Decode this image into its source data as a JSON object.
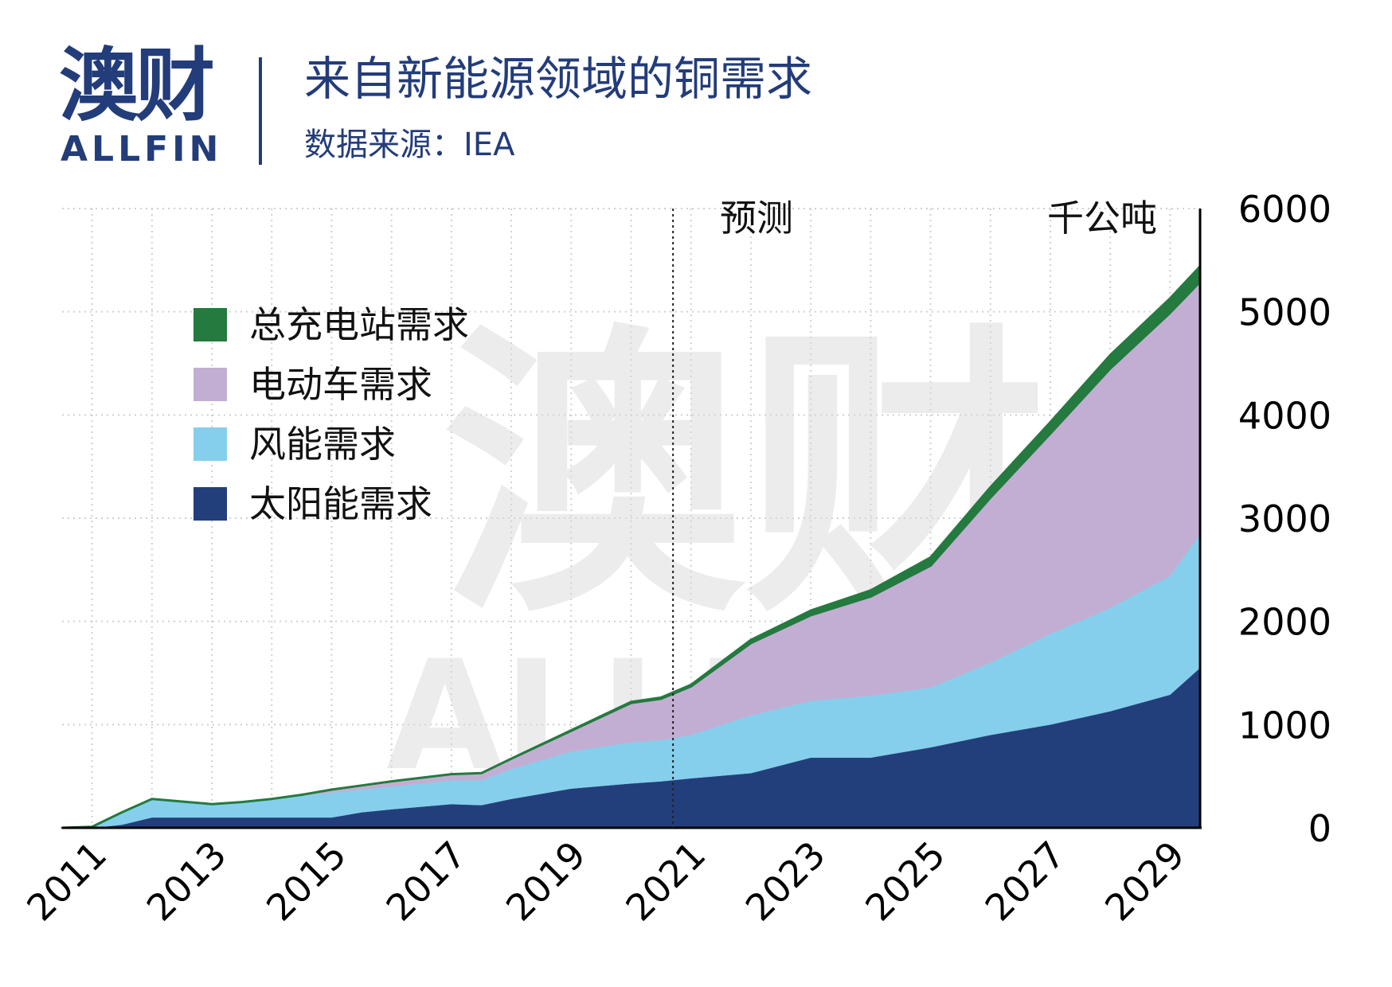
{
  "header": {
    "logo_cn": "澳财",
    "logo_en": "ALLFIN",
    "title": "来自新能源领域的铜需求",
    "source": "数据来源：IEA"
  },
  "watermark": {
    "cn": "澳财",
    "en": "ALLFIN"
  },
  "chart_data": {
    "type": "area",
    "stacked": true,
    "unit_label": "千公吨",
    "forecast_label": "预测",
    "forecast_start": 2020.7,
    "x": [
      2010.5,
      2011,
      2011.5,
      2012,
      2013,
      2013.5,
      2014,
      2014.5,
      2015,
      2015.5,
      2016,
      2017,
      2017.5,
      2018,
      2019,
      2020,
      2020.5,
      2021,
      2022,
      2023,
      2024,
      2025,
      2026,
      2027,
      2028,
      2029,
      2029.5
    ],
    "x_ticks": [
      "2011",
      "2013",
      "2015",
      "2017",
      "2019",
      "2021",
      "2023",
      "2025",
      "2027",
      "2029"
    ],
    "y_ticks": [
      "0",
      "1000",
      "2000",
      "3000",
      "4000",
      "5000",
      "6000"
    ],
    "ylim": [
      0,
      6000
    ],
    "y_axis_position": "right",
    "grid": true,
    "legend_position": "left",
    "series": [
      {
        "name": "太阳能需求",
        "color": "#233f7b",
        "values": [
          0,
          0,
          30,
          100,
          100,
          100,
          100,
          100,
          100,
          150,
          180,
          230,
          220,
          280,
          380,
          430,
          450,
          480,
          530,
          680,
          680,
          780,
          900,
          1000,
          1130,
          1290,
          1550
        ]
      },
      {
        "name": "风能需求",
        "color": "#86cfec",
        "values": [
          0,
          10,
          120,
          180,
          130,
          150,
          180,
          210,
          240,
          220,
          220,
          230,
          240,
          290,
          360,
          400,
          400,
          420,
          560,
          550,
          600,
          580,
          700,
          880,
          1000,
          1150,
          1300
        ]
      },
      {
        "name": "电动车需求",
        "color": "#c3aed3",
        "values": [
          0,
          0,
          0,
          0,
          0,
          0,
          0,
          10,
          30,
          40,
          50,
          60,
          70,
          100,
          200,
          380,
          400,
          470,
          700,
          830,
          960,
          1180,
          1600,
          1940,
          2320,
          2550,
          2440
        ]
      },
      {
        "name": "总充电站需求",
        "color": "#247a3f",
        "values": [
          0,
          0,
          0,
          0,
          0,
          0,
          0,
          0,
          0,
          0,
          0,
          0,
          0,
          0,
          5,
          10,
          12,
          15,
          30,
          45,
          60,
          80,
          100,
          110,
          130,
          140,
          150
        ]
      }
    ]
  }
}
